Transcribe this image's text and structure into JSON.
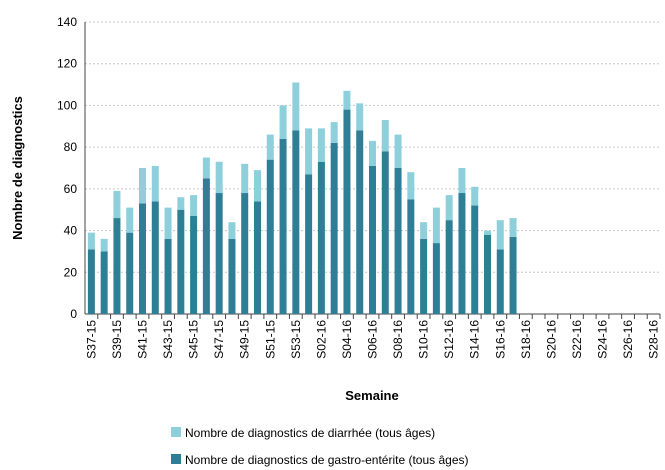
{
  "chart_data": {
    "type": "stacked_bar",
    "x_label": "Semaine",
    "y_label": "Nombre de diagnostics",
    "categories": [
      "S37-15",
      null,
      "S39-15",
      null,
      "S41-15",
      null,
      "S43-15",
      null,
      "S45-15",
      null,
      "S47-15",
      null,
      "S49-15",
      null,
      "S51-15",
      null,
      "S53-15",
      null,
      "S02-16",
      null,
      "S04-16",
      null,
      "S06-16",
      null,
      "S08-16",
      null,
      "S10-16",
      null,
      "S12-16",
      null,
      "S14-16",
      null,
      "S16-16",
      null,
      "S18-16",
      null,
      "S20-16",
      null,
      "S22-16",
      null,
      "S24-16",
      null,
      "S26-16",
      null,
      "S28-16"
    ],
    "series": [
      {
        "name": "Nombre de diagnostics de diarrhée (tous âges)",
        "color": "#8ecfdc",
        "values": [
          8,
          6,
          13,
          12,
          17,
          17,
          15,
          6,
          10,
          10,
          15,
          8,
          14,
          15,
          12,
          16,
          23,
          22,
          16,
          10,
          9,
          13,
          12,
          15,
          16,
          13,
          8,
          17,
          12,
          12,
          9,
          2,
          14,
          9,
          null,
          null,
          null,
          null,
          null,
          null,
          null,
          null,
          null,
          null,
          null
        ]
      },
      {
        "name": "Nombre de diagnostics de gastro-entérite (tous âges)",
        "color": "#2e7f96",
        "values": [
          31,
          30,
          46,
          39,
          53,
          54,
          36,
          50,
          47,
          65,
          58,
          36,
          58,
          54,
          74,
          84,
          88,
          67,
          73,
          82,
          98,
          88,
          71,
          78,
          70,
          55,
          36,
          34,
          45,
          58,
          52,
          38,
          31,
          37,
          null,
          null,
          null,
          null,
          null,
          null,
          null,
          null,
          null,
          null,
          null
        ]
      }
    ],
    "ylim": [
      0,
      140
    ],
    "yticks": [
      0,
      20,
      40,
      60,
      80,
      100,
      120,
      140
    ],
    "grid": true
  }
}
